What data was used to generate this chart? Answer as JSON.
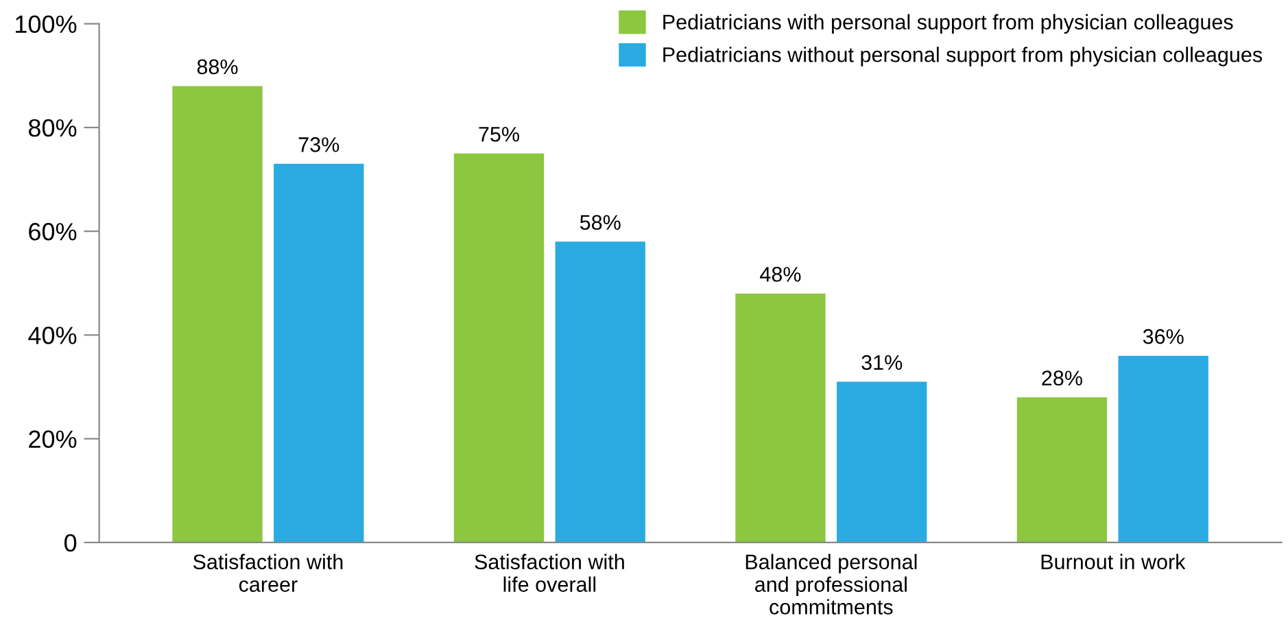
{
  "chart_data": {
    "type": "bar",
    "categories": [
      "Satisfaction with\ncareer",
      "Satisfaction with\nlife overall",
      "Balanced personal\nand professional\ncommitments",
      "Burnout in work"
    ],
    "series": [
      {
        "name": "Pediatricians with personal support from physician colleagues",
        "color": "#8dc63f",
        "values": [
          88,
          75,
          48,
          28
        ],
        "value_labels": [
          "88%",
          "75%",
          "48%",
          "28%"
        ]
      },
      {
        "name": "Pediatricians without personal support from physician colleagues",
        "color": "#29abe2",
        "values": [
          73,
          58,
          31,
          36
        ],
        "value_labels": [
          "73%",
          "58%",
          "31%",
          "36%"
        ]
      }
    ],
    "ylim": [
      0,
      100
    ],
    "yticks": [
      0,
      {
        "value": 20,
        "label": "20%"
      },
      {
        "value": 40,
        "label": "40%"
      },
      {
        "value": 60,
        "label": "60%"
      },
      {
        "value": 80,
        "label": "80%"
      },
      {
        "value": 100,
        "label": "100%"
      }
    ],
    "grid": false,
    "legend": "top right"
  }
}
